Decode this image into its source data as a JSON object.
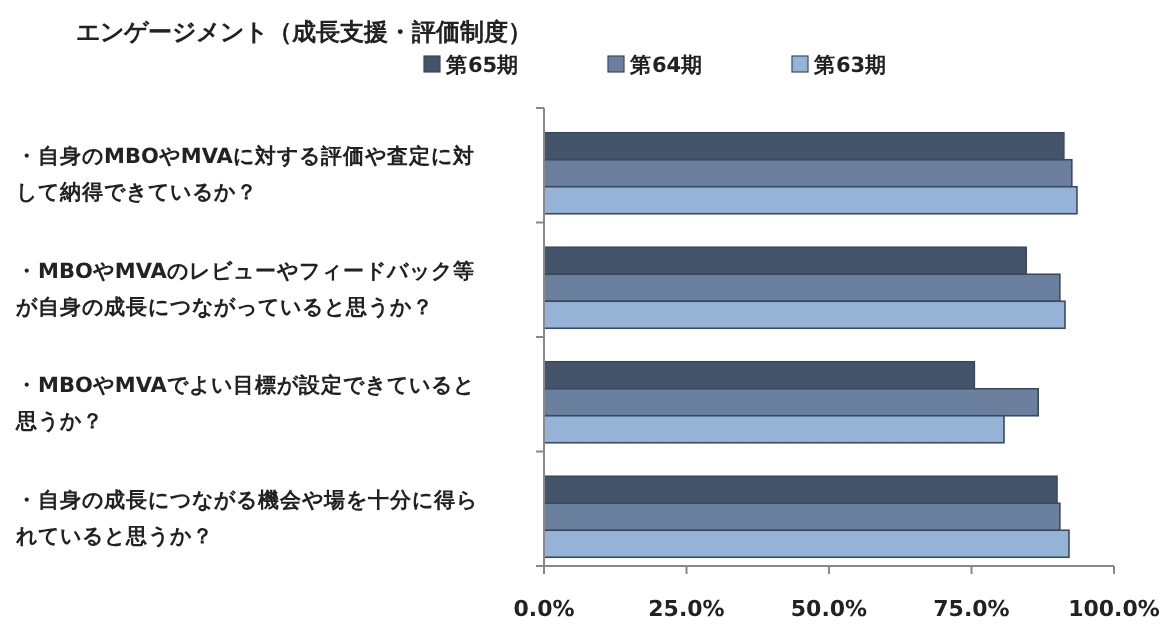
{
  "chart_data": {
    "type": "bar",
    "orientation": "horizontal",
    "title": "エンゲージメント（成長支援・評価制度）",
    "categories": [
      "・自身のMBOやMVAに対する評価や査定に対して納得できているか？",
      "・MBOやMVAのレビューやフィードバック等が自身の成長につながっていると思うか？",
      "・MBOやMVAでよい目標が設定できていると思うか？",
      "・自身の成長につながる機会や場を十分に得られていると思うか？"
    ],
    "series": [
      {
        "name": "第65期",
        "color": "#44546a",
        "values": [
          91.2,
          84.6,
          75.5,
          90.0
        ]
      },
      {
        "name": "第64期",
        "color": "#6b7f9f",
        "values": [
          92.6,
          90.5,
          86.7,
          90.5
        ]
      },
      {
        "name": "第63期",
        "color": "#95b3d7",
        "values": [
          93.5,
          91.4,
          80.7,
          92.1
        ]
      }
    ],
    "xlim": [
      0,
      100
    ],
    "xticks": [
      {
        "value": 0,
        "label": "0.0%"
      },
      {
        "value": 25,
        "label": "25.0%"
      },
      {
        "value": 50,
        "label": "50.0%"
      },
      {
        "value": 75,
        "label": "75.0%"
      },
      {
        "value": 100,
        "label": "100.0%"
      }
    ],
    "legend": "top",
    "grid": false
  }
}
